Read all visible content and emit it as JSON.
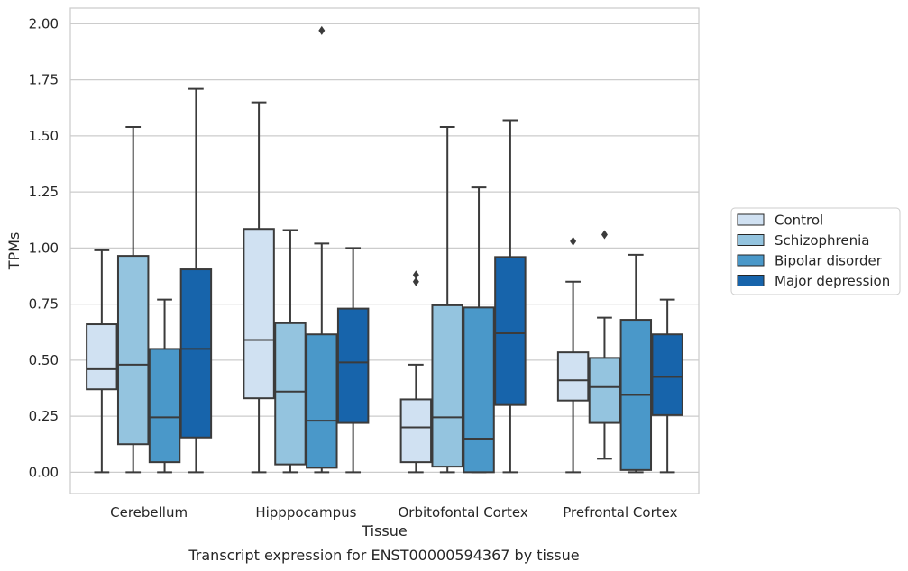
{
  "chart_data": {
    "type": "boxplot",
    "title": "Transcript expression for ENST00000594367 by tissue",
    "xlabel": "Tissue",
    "ylabel": "TPMs",
    "ylim": [
      -0.095,
      2.07
    ],
    "yticks": [
      "0.00",
      "0.25",
      "0.50",
      "0.75",
      "1.00",
      "1.25",
      "1.50",
      "1.75",
      "2.00"
    ],
    "grid": "horizontal",
    "legend_position": "right",
    "categories": [
      "Cerebellum",
      "Hipppocampus",
      "Orbitofontal Cortex",
      "Prefrontal Cortex"
    ],
    "series": [
      {
        "name": "Control",
        "color": "#d0e1f2",
        "boxes": [
          {
            "min": 0.0,
            "q1": 0.37,
            "median": 0.46,
            "q3": 0.66,
            "max": 0.99,
            "outliers": []
          },
          {
            "min": 0.0,
            "q1": 0.33,
            "median": 0.59,
            "q3": 1.085,
            "max": 1.65,
            "outliers": []
          },
          {
            "min": 0.0,
            "q1": 0.045,
            "median": 0.2,
            "q3": 0.325,
            "max": 0.48,
            "outliers": [
              0.85,
              0.88
            ]
          },
          {
            "min": 0.0,
            "q1": 0.32,
            "median": 0.41,
            "q3": 0.535,
            "max": 0.85,
            "outliers": [
              1.03
            ]
          }
        ]
      },
      {
        "name": "Schizophrenia",
        "color": "#94c4df",
        "boxes": [
          {
            "min": 0.0,
            "q1": 0.125,
            "median": 0.48,
            "q3": 0.965,
            "max": 1.54,
            "outliers": []
          },
          {
            "min": 0.0,
            "q1": 0.035,
            "median": 0.36,
            "q3": 0.665,
            "max": 1.08,
            "outliers": []
          },
          {
            "min": 0.0,
            "q1": 0.025,
            "median": 0.245,
            "q3": 0.745,
            "max": 1.54,
            "outliers": []
          },
          {
            "min": 0.06,
            "q1": 0.22,
            "median": 0.38,
            "q3": 0.51,
            "max": 0.69,
            "outliers": [
              1.06
            ]
          }
        ]
      },
      {
        "name": "Bipolar disorder",
        "color": "#4a98c9",
        "boxes": [
          {
            "min": 0.0,
            "q1": 0.045,
            "median": 0.245,
            "q3": 0.55,
            "max": 0.77,
            "outliers": []
          },
          {
            "min": 0.0,
            "q1": 0.02,
            "median": 0.23,
            "q3": 0.615,
            "max": 1.02,
            "outliers": [
              1.97
            ]
          },
          {
            "min": 0.0,
            "q1": 0.0,
            "median": 0.15,
            "q3": 0.735,
            "max": 1.27,
            "outliers": []
          },
          {
            "min": 0.0,
            "q1": 0.01,
            "median": 0.345,
            "q3": 0.68,
            "max": 0.97,
            "outliers": []
          }
        ]
      },
      {
        "name": "Major depression",
        "color": "#1764ab",
        "boxes": [
          {
            "min": 0.0,
            "q1": 0.155,
            "median": 0.55,
            "q3": 0.905,
            "max": 1.71,
            "outliers": []
          },
          {
            "min": 0.0,
            "q1": 0.22,
            "median": 0.49,
            "q3": 0.73,
            "max": 1.0,
            "outliers": []
          },
          {
            "min": 0.0,
            "q1": 0.3,
            "median": 0.62,
            "q3": 0.96,
            "max": 1.57,
            "outliers": []
          },
          {
            "min": 0.0,
            "q1": 0.255,
            "median": 0.425,
            "q3": 0.615,
            "max": 0.77,
            "outliers": []
          }
        ]
      }
    ]
  }
}
